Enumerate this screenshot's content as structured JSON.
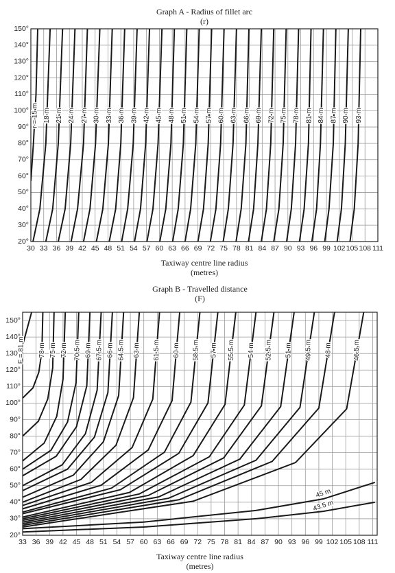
{
  "chart_data": [
    {
      "type": "line",
      "title": "Graph A - Radius of fillet arc",
      "subtitle": "(r)",
      "x_label": "Taxiway centre line radius",
      "x_label_unit": "(metres)",
      "xlim": [
        30,
        111
      ],
      "ylim": [
        20,
        150
      ],
      "grid": true,
      "color": "#1a1a1a",
      "xticks": [
        30,
        33,
        36,
        39,
        42,
        45,
        48,
        51,
        54,
        57,
        60,
        63,
        66,
        69,
        72,
        75,
        78,
        81,
        84,
        87,
        90,
        93,
        96,
        99,
        102,
        105,
        108,
        111
      ],
      "yticks": [
        {
          "value": 20,
          "label": "20°"
        },
        {
          "value": 30,
          "label": "30°"
        },
        {
          "value": 40,
          "label": "40°"
        },
        {
          "value": 50,
          "label": "50°"
        },
        {
          "value": 60,
          "label": "60°"
        },
        {
          "value": 70,
          "label": "70°"
        },
        {
          "value": 80,
          "label": "80°"
        },
        {
          "value": 90,
          "label": "90°"
        },
        {
          "value": 100,
          "label": "100°"
        },
        {
          "value": 110,
          "label": "110°"
        },
        {
          "value": 120,
          "label": "120°"
        },
        {
          "value": 130,
          "label": "130°"
        },
        {
          "value": 140,
          "label": "140°"
        },
        {
          "value": 150,
          "label": "150°"
        }
      ],
      "series": [
        {
          "name": "r = 15 m",
          "x": [
            30,
            30.6,
            31.2,
            31.6
          ],
          "values": [
            57,
            80,
            110,
            150
          ]
        },
        {
          "name": "18 m",
          "x": [
            30.5,
            32.1,
            33.5,
            34.5
          ],
          "values": [
            20,
            40,
            80,
            150
          ]
        },
        {
          "name": "21 m",
          "x": [
            33.5,
            35.1,
            36.4,
            37.4
          ],
          "values": [
            20,
            40,
            80,
            150
          ]
        },
        {
          "name": "24 m",
          "x": [
            36.4,
            38.0,
            39.3,
            40.3
          ],
          "values": [
            20,
            40,
            80,
            150
          ]
        },
        {
          "name": "27 m",
          "x": [
            39.4,
            40.9,
            42.3,
            43.2
          ],
          "values": [
            20,
            40,
            80,
            150
          ]
        },
        {
          "name": "30 m",
          "x": [
            42.3,
            43.8,
            45.1,
            46.1
          ],
          "values": [
            20,
            40,
            80,
            150
          ]
        },
        {
          "name": "33 m",
          "x": [
            45.3,
            46.8,
            48.1,
            49.0
          ],
          "values": [
            20,
            40,
            80,
            150
          ]
        },
        {
          "name": "36 m",
          "x": [
            48.3,
            49.8,
            51.0,
            51.9
          ],
          "values": [
            20,
            40,
            80,
            150
          ]
        },
        {
          "name": "39 m",
          "x": [
            51.2,
            52.6,
            53.9,
            54.8
          ],
          "values": [
            20,
            40,
            80,
            150
          ]
        },
        {
          "name": "42 m",
          "x": [
            54.2,
            55.6,
            56.8,
            57.7
          ],
          "values": [
            20,
            40,
            80,
            150
          ]
        },
        {
          "name": "45 m",
          "x": [
            57.1,
            58.5,
            59.7,
            60.6
          ],
          "values": [
            20,
            40,
            80,
            150
          ]
        },
        {
          "name": "48 m",
          "x": [
            60.1,
            61.5,
            62.7,
            63.5
          ],
          "values": [
            20,
            40,
            80,
            150
          ]
        },
        {
          "name": "51 m",
          "x": [
            63.1,
            64.4,
            65.6,
            66.4
          ],
          "values": [
            20,
            40,
            80,
            150
          ]
        },
        {
          "name": "54 m",
          "x": [
            66.0,
            67.3,
            68.5,
            69.3
          ],
          "values": [
            20,
            40,
            80,
            150
          ]
        },
        {
          "name": "57 m",
          "x": [
            69.0,
            70.3,
            71.4,
            72.2
          ],
          "values": [
            20,
            40,
            80,
            150
          ]
        },
        {
          "name": "60 m",
          "x": [
            71.9,
            73.2,
            74.3,
            75.1
          ],
          "values": [
            20,
            40,
            80,
            150
          ]
        },
        {
          "name": "63 m",
          "x": [
            74.9,
            76.1,
            77.2,
            78.0
          ],
          "values": [
            20,
            40,
            80,
            150
          ]
        },
        {
          "name": "66 m",
          "x": [
            77.9,
            79.1,
            80.2,
            80.9
          ],
          "values": [
            20,
            40,
            80,
            150
          ]
        },
        {
          "name": "69 m",
          "x": [
            80.8,
            82.0,
            83.0,
            83.8
          ],
          "values": [
            20,
            40,
            80,
            150
          ]
        },
        {
          "name": "72 m",
          "x": [
            83.8,
            85.0,
            86.0,
            86.7
          ],
          "values": [
            20,
            40,
            80,
            150
          ]
        },
        {
          "name": "75 m",
          "x": [
            86.7,
            87.9,
            88.9,
            89.6
          ],
          "values": [
            20,
            40,
            80,
            150
          ]
        },
        {
          "name": "78 m",
          "x": [
            89.7,
            90.8,
            91.8,
            92.5
          ],
          "values": [
            20,
            40,
            80,
            150
          ]
        },
        {
          "name": "81 m",
          "x": [
            92.7,
            93.8,
            94.8,
            95.4
          ],
          "values": [
            20,
            40,
            80,
            150
          ]
        },
        {
          "name": "84 m",
          "x": [
            95.6,
            96.7,
            97.6,
            98.3
          ],
          "values": [
            20,
            40,
            80,
            150
          ]
        },
        {
          "name": "87 m",
          "x": [
            98.6,
            99.6,
            100.6,
            101.2
          ],
          "values": [
            20,
            40,
            80,
            150
          ]
        },
        {
          "name": "90 m",
          "x": [
            101.5,
            102.5,
            103.4,
            104.1
          ],
          "values": [
            20,
            40,
            80,
            150
          ]
        },
        {
          "name": "93 m",
          "x": [
            104.5,
            105.5,
            106.4,
            107.0
          ],
          "values": [
            20,
            40,
            80,
            150
          ]
        }
      ]
    },
    {
      "type": "line",
      "title": "Graph B - Travelled distance",
      "subtitle": "(F)",
      "x_label": "Taxiway centre line radius",
      "x_label_unit": "(metres)",
      "xlim": [
        33,
        112
      ],
      "ylim": [
        20,
        155
      ],
      "grid": true,
      "color": "#1a1a1a",
      "xticks": [
        33,
        36,
        39,
        42,
        45,
        48,
        51,
        54,
        57,
        60,
        63,
        66,
        69,
        72,
        75,
        78,
        81,
        84,
        87,
        90,
        93,
        96,
        99,
        102,
        105,
        108,
        111
      ],
      "yticks": [
        {
          "value": 20,
          "label": "20°"
        },
        {
          "value": 30,
          "label": "30°"
        },
        {
          "value": 40,
          "label": "40°"
        },
        {
          "value": 50,
          "label": "50°"
        },
        {
          "value": 60,
          "label": "60°"
        },
        {
          "value": 70,
          "label": "70°"
        },
        {
          "value": 80,
          "label": "80°"
        },
        {
          "value": 90,
          "label": "90°"
        },
        {
          "value": 100,
          "label": "100°"
        },
        {
          "value": 110,
          "label": "110°"
        },
        {
          "value": 120,
          "label": "120°"
        },
        {
          "value": 130,
          "label": "130°"
        },
        {
          "value": 140,
          "label": "140°"
        },
        {
          "value": 150,
          "label": "150°"
        }
      ],
      "series": [
        {
          "name": "F = 81 m",
          "x": [
            33,
            34,
            35
          ],
          "values": [
            135,
            145,
            155
          ]
        },
        {
          "name": "78 m",
          "x": [
            33,
            35.3,
            36.6,
            37.3,
            37.5
          ],
          "values": [
            103,
            109.2,
            118.6,
            131.6,
            155
          ]
        },
        {
          "name": "75 m",
          "x": [
            33,
            36.5,
            38.6,
            39.7,
            40
          ],
          "values": [
            80,
            89,
            102.5,
            121.3,
            155
          ]
        },
        {
          "name": "72 m",
          "x": [
            33,
            37.8,
            40.6,
            42.0,
            42.5
          ],
          "values": [
            65,
            75.8,
            92,
            114.5,
            155
          ]
        },
        {
          "name": "70.5 m",
          "x": [
            33,
            39.3,
            43,
            44.9,
            45.5
          ],
          "values": [
            60,
            71.4,
            88.5,
            112.3,
            155
          ]
        },
        {
          "name": "69 m",
          "x": [
            33,
            40.5,
            45,
            47.3,
            48
          ],
          "values": [
            56,
            67.9,
            85.7,
            110.5,
            155
          ]
        },
        {
          "name": "67.5 m",
          "x": [
            33,
            41.8,
            47,
            49.6,
            50.5
          ],
          "values": [
            50,
            62.6,
            81.5,
            107.8,
            155
          ]
        },
        {
          "name": "66 m",
          "x": [
            33,
            43,
            49,
            52,
            53
          ],
          "values": [
            47,
            60,
            79.4,
            106.4,
            155
          ]
        },
        {
          "name": "64.5 m",
          "x": [
            33,
            44.3,
            51,
            54.4,
            55.5
          ],
          "values": [
            43,
            56.4,
            76.6,
            104.6,
            155
          ]
        },
        {
          "name": "63 m",
          "x": [
            33,
            46,
            53.8,
            57.7,
            59
          ],
          "values": [
            40,
            53.8,
            74.5,
            103.3,
            155
          ]
        },
        {
          "name": "61.5 m",
          "x": [
            33,
            48.3,
            57.4,
            62,
            63.5
          ],
          "values": [
            38,
            52,
            73.1,
            102.4,
            155
          ]
        },
        {
          "name": "60 m",
          "x": [
            33,
            50.5,
            61,
            66.3,
            68
          ],
          "values": [
            36,
            50.3,
            71.7,
            101.5,
            155
          ]
        },
        {
          "name": "58.5 m",
          "x": [
            33,
            52.8,
            64.6,
            70.5,
            72.5
          ],
          "values": [
            34,
            48.5,
            70.3,
            100.6,
            155
          ]
        },
        {
          "name": "57 m",
          "x": [
            33,
            54.8,
            67.8,
            74.3,
            76.5
          ],
          "values": [
            33,
            47.6,
            69.6,
            100.1,
            155
          ]
        },
        {
          "name": "55.5 m",
          "x": [
            33,
            56.8,
            71,
            78.1,
            80.5
          ],
          "values": [
            31,
            45.9,
            68.2,
            99.2,
            155
          ]
        },
        {
          "name": "54 m",
          "x": [
            33,
            59,
            74.6,
            82.4,
            85
          ],
          "values": [
            30,
            45,
            67.5,
            98.8,
            155
          ]
        },
        {
          "name": "52.5 m",
          "x": [
            33,
            61,
            77.8,
            86.2,
            89
          ],
          "values": [
            29,
            44.1,
            66.8,
            98.3,
            155
          ]
        },
        {
          "name": "51 m",
          "x": [
            33,
            63.3,
            81.4,
            90.5,
            93.5
          ],
          "values": [
            28,
            43.2,
            66.1,
            97.9,
            155
          ]
        },
        {
          "name": "49.5 m",
          "x": [
            33,
            65.5,
            85,
            94.8,
            98
          ],
          "values": [
            27,
            42.4,
            65.4,
            97.4,
            155
          ]
        },
        {
          "name": "48 m",
          "x": [
            33,
            67.8,
            88.6,
            99,
            102.5
          ],
          "values": [
            26,
            41.5,
            64.7,
            97,
            155
          ]
        },
        {
          "name": "46.5 m",
          "x": [
            33,
            71,
            93.8,
            105.2,
            109
          ],
          "values": [
            25,
            40.6,
            64,
            96.5,
            155
          ]
        },
        {
          "name": "45 m",
          "x": [
            33,
            60,
            85,
            100,
            111.5
          ],
          "values": [
            24,
            28,
            35,
            42,
            52
          ]
        },
        {
          "name": "43.5 m",
          "x": [
            33,
            60,
            85,
            100,
            111.5
          ],
          "values": [
            22,
            25,
            30,
            34.5,
            40
          ]
        }
      ]
    }
  ]
}
